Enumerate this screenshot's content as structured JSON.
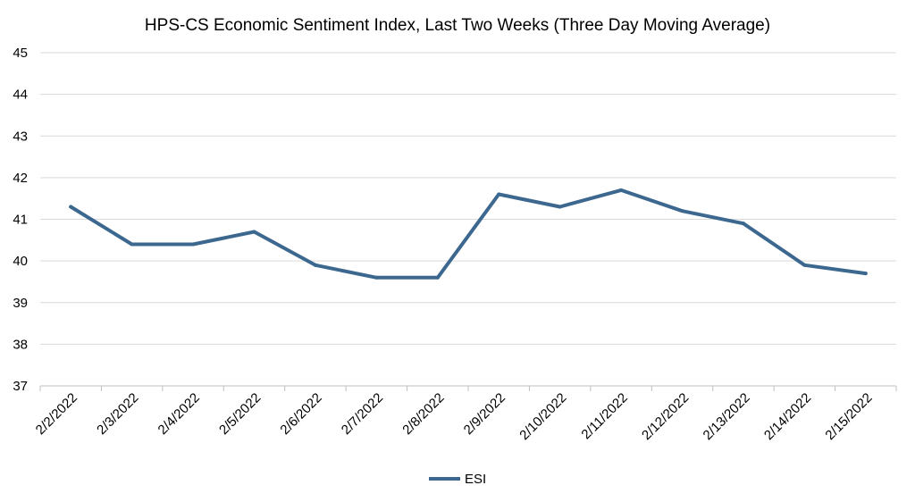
{
  "chart_data": {
    "type": "line",
    "title": "HPS-CS Economic Sentiment Index, Last Two Weeks (Three Day Moving Average)",
    "xlabel": "",
    "ylabel": "",
    "categories": [
      "2/2/2022",
      "2/3/2022",
      "2/4/2022",
      "2/5/2022",
      "2/6/2022",
      "2/7/2022",
      "2/8/2022",
      "2/9/2022",
      "2/10/2022",
      "2/11/2022",
      "2/12/2022",
      "2/13/2022",
      "2/14/2022",
      "2/15/2022"
    ],
    "series": [
      {
        "name": "ESI",
        "values": [
          41.3,
          40.4,
          40.4,
          40.7,
          39.9,
          39.6,
          39.6,
          41.6,
          41.3,
          41.7,
          41.2,
          40.9,
          39.9,
          39.7
        ],
        "color": "#3c6890"
      }
    ],
    "ylim": [
      37,
      45
    ],
    "yticks": [
      "37",
      "38",
      "39",
      "40",
      "41",
      "42",
      "43",
      "44",
      "45"
    ],
    "grid": true,
    "legend": "bottom-center"
  }
}
